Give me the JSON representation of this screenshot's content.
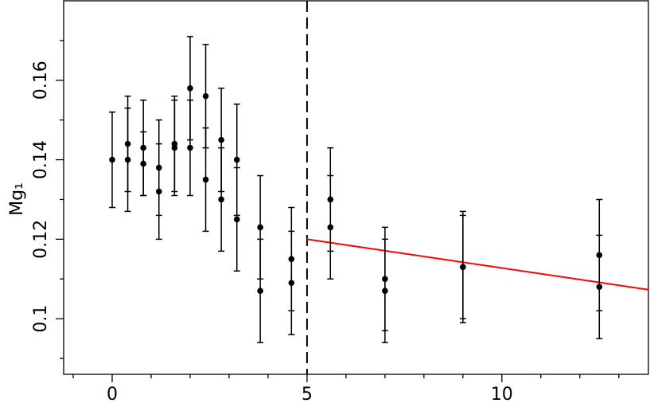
{
  "chart_data": {
    "type": "scatter",
    "ylabel": "Mg₁",
    "xlim": [
      -1.245,
      13.76
    ],
    "ylim": [
      0.086,
      0.18
    ],
    "xticks": [
      0,
      5,
      10
    ],
    "xminor_ticks": [
      -1,
      1,
      2,
      3,
      4,
      6,
      7,
      8,
      9,
      11,
      12,
      13
    ],
    "yticks": [
      0.1,
      0.12,
      0.14,
      0.16
    ],
    "yminor_ticks": [
      0.09,
      0.11,
      0.13,
      0.15,
      0.17
    ],
    "series": [
      {
        "color": "#000000",
        "x": [
          0,
          0.4,
          0.4,
          0.8,
          0.8,
          1.2,
          1.2,
          1.6,
          1.6,
          2,
          2,
          2.4,
          2.4,
          2.8,
          2.8,
          3.2,
          3.2,
          3.8,
          3.8,
          4.6,
          4.6,
          5.6,
          5.6,
          7,
          7,
          9,
          9,
          12.5,
          12.5
        ],
        "values": [
          0.14,
          0.144,
          0.14,
          0.143,
          0.139,
          0.138,
          0.132,
          0.144,
          0.143,
          0.158,
          0.143,
          0.156,
          0.135,
          0.145,
          0.13,
          0.14,
          0.125,
          0.123,
          0.107,
          0.115,
          0.109,
          0.13,
          0.123,
          0.11,
          0.107,
          0.113,
          0.113,
          0.116,
          0.108
        ],
        "errors": [
          0.012,
          0.012,
          0.013,
          0.012,
          0.008,
          0.012,
          0.012,
          0.012,
          0.012,
          0.013,
          0.012,
          0.013,
          0.013,
          0.013,
          0.013,
          0.014,
          0.013,
          0.013,
          0.013,
          0.013,
          0.013,
          0.013,
          0.013,
          0.013,
          0.013,
          0.014,
          0.013,
          0.014,
          0.013
        ]
      }
    ],
    "vline": {
      "x": 5,
      "style": "dashed",
      "color": "#000000"
    },
    "fit": {
      "color": "#ff0000",
      "x": [
        5,
        13.76
      ],
      "y": [
        0.12,
        0.1073
      ]
    }
  }
}
